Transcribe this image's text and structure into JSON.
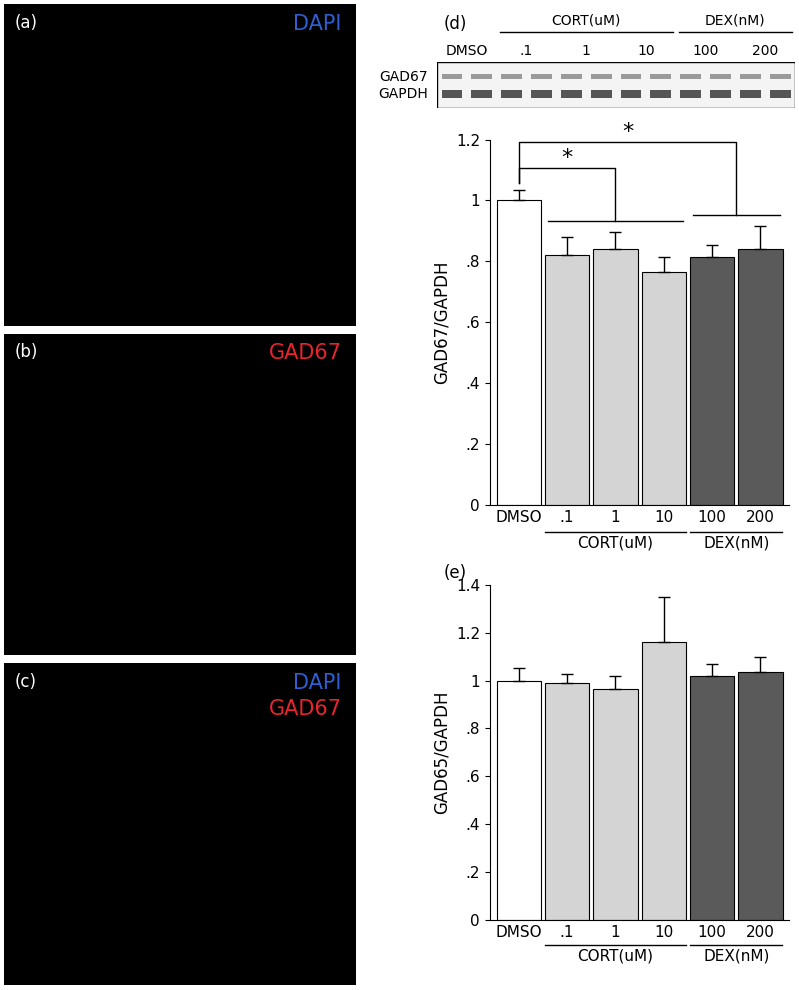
{
  "panels": [
    {
      "label": "(a)",
      "stains": [
        {
          "text": "DAPI",
          "color": "#2f5fd0"
        }
      ]
    },
    {
      "label": "(b)",
      "stains": [
        {
          "text": "GAD67",
          "color": "#e8252e"
        }
      ]
    },
    {
      "label": "(c)",
      "stains": [
        {
          "text": "DAPI",
          "color": "#2f5fd0"
        },
        {
          "text": "GAD67",
          "color": "#e8252e"
        }
      ]
    }
  ],
  "blot": {
    "lanes": [
      "DMSO",
      ".1",
      "1",
      "10",
      "100",
      "200"
    ],
    "groups": [
      {
        "label": "CORT(uM)",
        "members": [
          ".1",
          "1",
          "10"
        ]
      },
      {
        "label": "DEX(nM)",
        "members": [
          "100",
          "200"
        ]
      }
    ],
    "bands": [
      "GAD67",
      "GAPDH"
    ]
  },
  "chart_data": [
    {
      "type": "bar",
      "panel": "(d)",
      "categories": [
        "DMSO",
        ".1",
        "1",
        "10",
        "100",
        "200"
      ],
      "values": [
        1.0,
        0.82,
        0.84,
        0.765,
        0.815,
        0.84
      ],
      "errors": [
        0.035,
        0.06,
        0.055,
        0.05,
        0.04,
        0.075
      ],
      "colors": [
        "#ffffff",
        "#d4d4d4",
        "#d4d4d4",
        "#d4d4d4",
        "#5a5a5a",
        "#5a5a5a"
      ],
      "groups": [
        {
          "label": "CORT(uM)",
          "members": [
            ".1",
            "1",
            "10"
          ]
        },
        {
          "label": "DEX(nM)",
          "members": [
            "100",
            "200"
          ]
        }
      ],
      "significance": [
        {
          "from": "DMSO",
          "to": "CORT(uM)",
          "label": "*"
        },
        {
          "from": "DMSO",
          "to": "DEX(nM)",
          "label": "*"
        }
      ],
      "y_label": "GAD67/GAPDH",
      "ylim": [
        0,
        1.2
      ],
      "yticks": [
        0,
        {
          "value": 0.2,
          "label": ".2"
        },
        {
          "value": 0.4,
          "label": ".4"
        },
        {
          "value": 0.6,
          "label": ".6"
        },
        {
          "value": 0.8,
          "label": ".8"
        },
        1,
        1.2
      ]
    },
    {
      "type": "bar",
      "panel": "(e)",
      "categories": [
        "DMSO",
        ".1",
        "1",
        "10",
        "100",
        "200"
      ],
      "values": [
        1.0,
        0.99,
        0.965,
        1.16,
        1.02,
        1.035
      ],
      "errors": [
        0.055,
        0.04,
        0.055,
        0.19,
        0.05,
        0.065
      ],
      "colors": [
        "#ffffff",
        "#d4d4d4",
        "#d4d4d4",
        "#d4d4d4",
        "#5a5a5a",
        "#5a5a5a"
      ],
      "groups": [
        {
          "label": "CORT(uM)",
          "members": [
            ".1",
            "1",
            "10"
          ]
        },
        {
          "label": "DEX(nM)",
          "members": [
            "100",
            "200"
          ]
        }
      ],
      "y_label": "GAD65/GAPDH",
      "ylim": [
        0,
        1.4
      ],
      "yticks": [
        0,
        {
          "value": 0.2,
          "label": ".2"
        },
        {
          "value": 0.4,
          "label": ".4"
        },
        {
          "value": 0.6,
          "label": ".6"
        },
        {
          "value": 0.8,
          "label": ".8"
        },
        1,
        1.2,
        1.4
      ]
    }
  ]
}
